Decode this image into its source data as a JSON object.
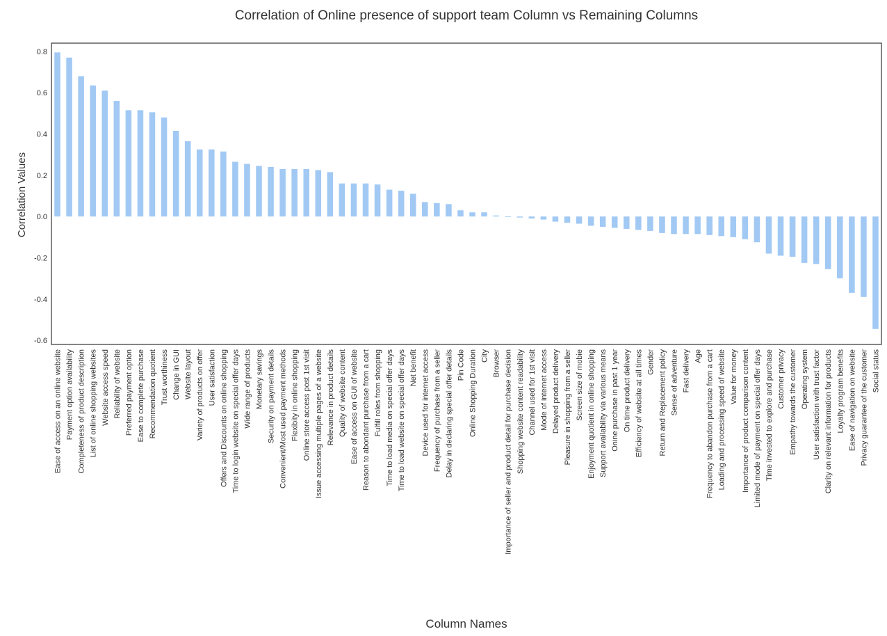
{
  "chart_data": {
    "type": "bar",
    "title": "Correlation of Online presence of support team Column vs Remaining Columns",
    "xlabel": "Column Names",
    "ylabel": "Correlation Values",
    "ylim": [
      -0.62,
      0.84
    ],
    "yticks": [
      "0.8",
      "0.6",
      "0.4",
      "0.2",
      "0.0",
      "-0.2",
      "-0.4",
      "-0.6"
    ],
    "ytick_values": [
      0.8,
      0.6,
      0.4,
      0.2,
      0.0,
      -0.2,
      -0.4,
      -0.6
    ],
    "grid": false,
    "bar_color": "#a1c9f4",
    "categories": [
      "Ease of access on an online website",
      "Payment option availability",
      "Completeness of product description",
      "List of online shopping websites",
      "Website access speed",
      "Reliability of website",
      "Preferred payment option",
      "Ease to complete purchase",
      "Recommendation quotient",
      "Trust worthiness",
      "Change in GUI",
      "Website layout",
      "Variety of products on offer",
      "User satisfaction",
      "Offers and Discounts on online shopping",
      "Time to login website on special offer days",
      "Wide range of products",
      "Monetary savings",
      "Security on payment details",
      "Convenient/Most used payment methods",
      "Flexibity in online shopping",
      "Online store access post 1st visit",
      "Issue accessing multiple pages of a website",
      "Relevance in product details",
      "Quality of website content",
      "Ease of access on GUI of website",
      "Reason to abondant purchase from a cart",
      "Fulfill roles from shopping",
      "Time to load media on special offer days",
      "Time to load website on special offer days",
      "Net benefit",
      "Device used for internet access",
      "Frequency of purchase from a seller",
      "Delay in declaring special offer details",
      "Pin Code",
      "Online Shopping Duration",
      "City",
      "Browser",
      "Importance of seller and product detail for purchase decision",
      "Shopping website content readability",
      "Channel used for 1st visit",
      "Mode of internet access",
      "Delayed product delivery",
      "Pleasure in shopping from a seller",
      "Screen size of mobie",
      "Enjoyment quotient in online shopping",
      "Support availability via various means",
      "Onine purchase in past 1 year",
      "On time product delivery",
      "Efficiency of website at all times",
      "Gender",
      "Return and Replacement policy",
      "Sense of adventure",
      "Fast delivery",
      "Age",
      "Frequency to abandon purchase from a cart",
      "Loading and processing speed of website",
      "Value for money",
      "Importance of product comparison content",
      "Limited mode of payment on special offer days",
      "Time invested to explore and purchase",
      "Customer privacy",
      "Empathy towards the customer",
      "Operating system",
      "User satisfaction with trust factor",
      "Clarity on relevant information for products",
      "Loyalty program benefits",
      "Ease of navigation on website",
      "Privacy guarantee of the customer",
      "Social status"
    ],
    "values": [
      0.795,
      0.77,
      0.68,
      0.635,
      0.61,
      0.56,
      0.515,
      0.515,
      0.505,
      0.48,
      0.415,
      0.365,
      0.325,
      0.325,
      0.315,
      0.265,
      0.255,
      0.245,
      0.24,
      0.23,
      0.23,
      0.23,
      0.225,
      0.215,
      0.16,
      0.16,
      0.16,
      0.155,
      0.13,
      0.125,
      0.11,
      0.07,
      0.065,
      0.06,
      0.03,
      0.02,
      0.02,
      0.005,
      -0.003,
      -0.005,
      -0.01,
      -0.015,
      -0.025,
      -0.03,
      -0.035,
      -0.045,
      -0.05,
      -0.055,
      -0.06,
      -0.065,
      -0.07,
      -0.08,
      -0.085,
      -0.085,
      -0.085,
      -0.09,
      -0.095,
      -0.1,
      -0.11,
      -0.125,
      -0.18,
      -0.19,
      -0.195,
      -0.225,
      -0.23,
      -0.255,
      -0.3,
      -0.37,
      -0.39,
      -0.545
    ]
  }
}
